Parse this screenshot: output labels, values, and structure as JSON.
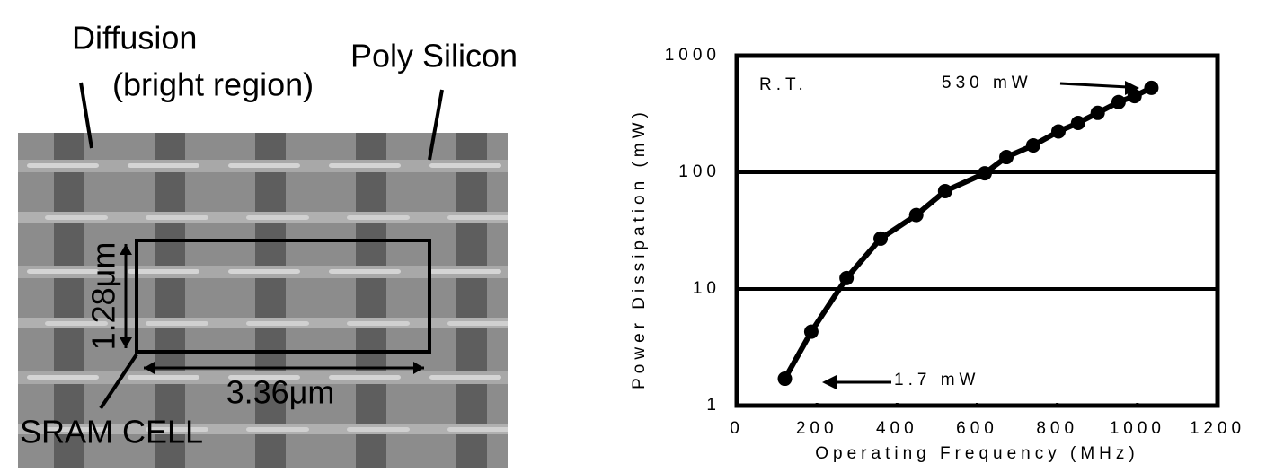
{
  "micrograph": {
    "labels": {
      "diffusion": "Diffusion",
      "bright_region": "(bright region)",
      "poly": "Poly Silicon",
      "height": "1.28μm",
      "width": "3.36μm",
      "cell": "SRAM CELL"
    }
  },
  "chart_data": {
    "type": "line",
    "x_label": "Operating Frequency (MHz)",
    "y_label": "Power Dissipation (mW)",
    "yscale": "log",
    "grid": true,
    "color": "#000000",
    "series": [
      {
        "x": [
          120,
          186,
          274,
          359,
          448,
          520,
          619,
          673,
          740,
          803,
          852,
          901,
          953,
          993,
          1035
        ],
        "values": [
          1.7,
          4.3,
          12.4,
          27,
          43,
          69,
          98,
          135,
          170,
          224,
          265,
          323,
          400,
          450,
          530
        ]
      }
    ],
    "xlim": [
      0,
      1200
    ],
    "xticks": [
      0,
      200,
      400,
      600,
      800,
      1000,
      1200
    ],
    "ylim": [
      1,
      1000
    ],
    "yticks": [
      1,
      10,
      100,
      1000
    ],
    "annotations": [
      "R.T.",
      "530 mW",
      "1.7 mW"
    ]
  }
}
